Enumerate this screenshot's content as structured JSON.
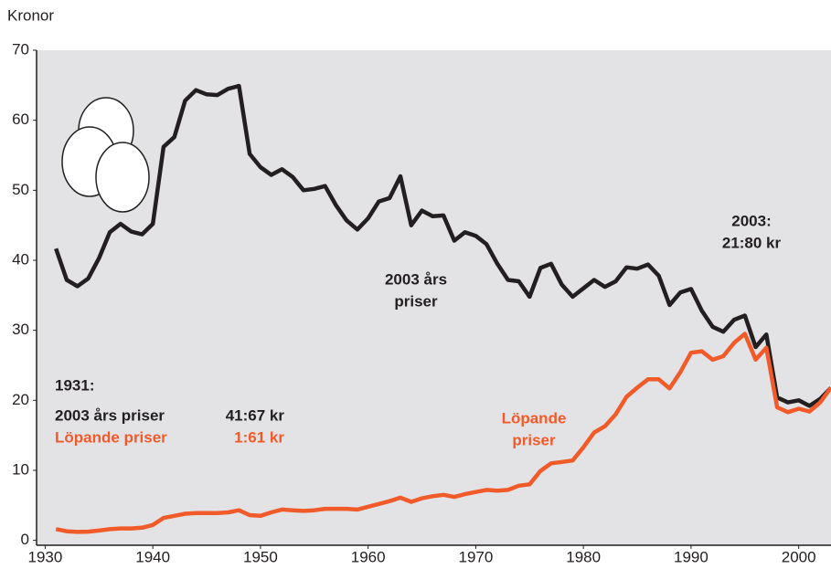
{
  "chart_data": {
    "type": "line",
    "y_label": "Kronor",
    "x": [
      1931,
      1932,
      1933,
      1934,
      1935,
      1936,
      1937,
      1938,
      1939,
      1940,
      1941,
      1942,
      1943,
      1944,
      1945,
      1946,
      1947,
      1948,
      1949,
      1950,
      1951,
      1952,
      1953,
      1954,
      1955,
      1956,
      1957,
      1958,
      1959,
      1960,
      1961,
      1962,
      1963,
      1964,
      1965,
      1966,
      1967,
      1968,
      1969,
      1970,
      1971,
      1972,
      1973,
      1974,
      1975,
      1976,
      1977,
      1978,
      1979,
      1980,
      1981,
      1982,
      1983,
      1984,
      1985,
      1986,
      1987,
      1988,
      1989,
      1990,
      1991,
      1992,
      1993,
      1994,
      1995,
      1996,
      1997,
      1998,
      1999,
      2000,
      2001,
      2002,
      2003
    ],
    "series": [
      {
        "name": "2003 års priser",
        "color": "#231f20",
        "values": [
          41.67,
          37.2,
          36.3,
          37.4,
          40.3,
          44,
          45.2,
          44.1,
          43.7,
          45.2,
          56.2,
          57.6,
          62.8,
          64.3,
          63.7,
          63.6,
          64.5,
          64.9,
          55.2,
          53.3,
          52.2,
          53,
          51.9,
          50,
          50.2,
          50.6,
          47.9,
          45.7,
          44.4,
          46,
          48.4,
          48.9,
          52,
          45,
          47.1,
          46.3,
          46.4,
          42.8,
          44,
          43.5,
          42.3,
          39.5,
          37.2,
          37,
          34.8,
          38.9,
          39.5,
          36.5,
          34.8,
          36,
          37.2,
          36.2,
          37,
          39,
          38.8,
          39.4,
          37.8,
          33.6,
          35.4,
          35.9,
          32.8,
          30.5,
          29.8,
          31.5,
          32.1,
          27.6,
          29.4,
          20.4,
          19.7,
          20,
          19.2,
          20.2,
          21.8
        ]
      },
      {
        "name": "Löpande priser",
        "color": "#f15a29",
        "values": [
          1.61,
          1.3,
          1.2,
          1.25,
          1.4,
          1.6,
          1.7,
          1.7,
          1.8,
          2.2,
          3.2,
          3.5,
          3.8,
          3.9,
          3.9,
          3.9,
          4,
          4.3,
          3.6,
          3.5,
          4,
          4.4,
          4.3,
          4.2,
          4.3,
          4.5,
          4.5,
          4.5,
          4.4,
          4.8,
          5.2,
          5.6,
          6.1,
          5.5,
          6,
          6.3,
          6.5,
          6.2,
          6.6,
          6.9,
          7.2,
          7.1,
          7.2,
          7.8,
          8,
          9.9,
          11,
          11.2,
          11.4,
          13.3,
          15.4,
          16.3,
          18,
          20.5,
          21.8,
          23,
          23,
          21.7,
          24,
          26.8,
          27,
          25.8,
          26.3,
          28.2,
          29.5,
          25.8,
          27.5,
          19,
          18.3,
          18.8,
          18.4,
          19.7,
          21.8
        ]
      }
    ],
    "xlim": [
      1929.2,
      2003
    ],
    "ylim": [
      -0.7,
      70
    ],
    "xticks": [
      1930,
      1940,
      1950,
      1960,
      1970,
      1980,
      1990,
      2000
    ],
    "yticks": [
      0,
      10,
      20,
      30,
      40,
      50,
      60,
      70
    ],
    "annotations": [
      {
        "lines": [
          "2003 års",
          "priser"
        ]
      },
      {
        "lines": [
          "2003:",
          "21:80 kr"
        ]
      },
      {
        "lines": [
          "Löpande",
          "priser"
        ]
      },
      {
        "lines": [
          "1931:"
        ]
      },
      {
        "lines": [
          "41:67 kr"
        ]
      },
      {
        "lines": [
          "1:61 kr"
        ]
      }
    ]
  }
}
